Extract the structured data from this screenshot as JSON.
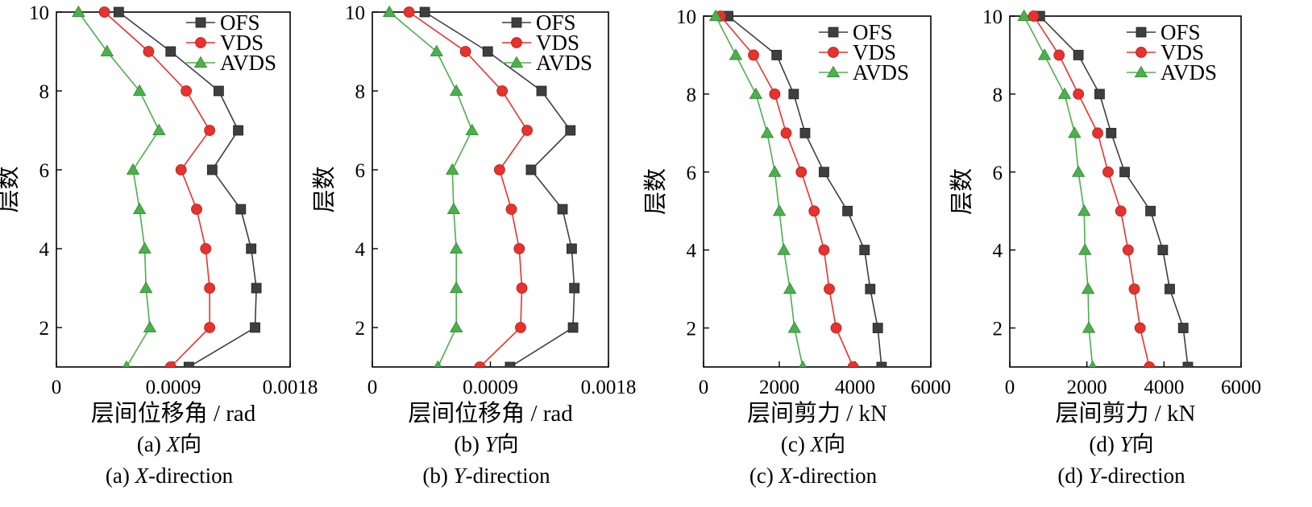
{
  "colors": {
    "OFS": "#3f3f3f",
    "VDS": "#e8322d",
    "AVDS": "#4cb04c",
    "axis": "#000000"
  },
  "markers": {
    "OFS": "square",
    "VDS": "circle",
    "AVDS": "triangle"
  },
  "chart_data": [
    {
      "type": "line",
      "orientation": "x-value-y-storey",
      "caption_cn_prefix": "(a) ",
      "caption_cn_var": "X",
      "caption_cn_suffix": "向",
      "caption_en_prefix": "(a) ",
      "caption_en_var": "X",
      "caption_en_suffix": "-direction",
      "xlabel": "层间位移角 / rad",
      "ylabel": "层数",
      "xlim": [
        0,
        0.0018
      ],
      "ylim": [
        1,
        10
      ],
      "xticks": [
        0,
        0.0009,
        0.0018
      ],
      "xtick_labels": [
        "0",
        "0.0009",
        "0.0018"
      ],
      "yticks": [
        2,
        4,
        6,
        8,
        10
      ],
      "ytick_labels": [
        "2",
        "4",
        "6",
        "8",
        "10"
      ],
      "legend_position": "top-right",
      "y": [
        1,
        2,
        3,
        4,
        5,
        6,
        7,
        8,
        9,
        10
      ],
      "series": [
        {
          "name": "OFS",
          "values": [
            0.00102,
            0.00153,
            0.00154,
            0.0015,
            0.00142,
            0.0012,
            0.0014,
            0.00125,
            0.00088,
            0.00048
          ]
        },
        {
          "name": "VDS",
          "values": [
            0.00088,
            0.00118,
            0.00118,
            0.00115,
            0.00108,
            0.00096,
            0.00118,
            0.001,
            0.00071,
            0.00037
          ]
        },
        {
          "name": "AVDS",
          "values": [
            0.00054,
            0.00072,
            0.00069,
            0.00068,
            0.00064,
            0.00059,
            0.00079,
            0.00064,
            0.00039,
            0.00017
          ]
        }
      ]
    },
    {
      "type": "line",
      "orientation": "x-value-y-storey",
      "caption_cn_prefix": "(b) ",
      "caption_cn_var": "Y",
      "caption_cn_suffix": "向",
      "caption_en_prefix": "(b) ",
      "caption_en_var": "Y",
      "caption_en_suffix": "-direction",
      "xlabel": "层间位移角 / rad",
      "ylabel": "层数",
      "xlim": [
        0,
        0.0018
      ],
      "ylim": [
        1,
        10
      ],
      "xticks": [
        0,
        0.0009,
        0.0018
      ],
      "xtick_labels": [
        "0",
        "0.0009",
        "0.0018"
      ],
      "yticks": [
        2,
        4,
        6,
        8,
        10
      ],
      "ytick_labels": [
        "2",
        "4",
        "6",
        "8",
        "10"
      ],
      "legend_position": "top-right",
      "y": [
        1,
        2,
        3,
        4,
        5,
        6,
        7,
        8,
        9,
        10
      ],
      "series": [
        {
          "name": "OFS",
          "values": [
            0.00105,
            0.00153,
            0.00154,
            0.00152,
            0.00145,
            0.00121,
            0.00151,
            0.00129,
            0.00088,
            0.0004
          ]
        },
        {
          "name": "VDS",
          "values": [
            0.00082,
            0.00113,
            0.00114,
            0.00112,
            0.00106,
            0.00097,
            0.00118,
            0.00099,
            0.00071,
            0.00028
          ]
        },
        {
          "name": "AVDS",
          "values": [
            0.0005,
            0.00064,
            0.00064,
            0.00064,
            0.00062,
            0.00061,
            0.00076,
            0.00064,
            0.00049,
            0.00013
          ]
        }
      ]
    },
    {
      "type": "line",
      "orientation": "x-value-y-storey",
      "caption_cn_prefix": "(c) ",
      "caption_cn_var": "X",
      "caption_cn_suffix": "向",
      "caption_en_prefix": "(c) ",
      "caption_en_var": "X",
      "caption_en_suffix": "-direction",
      "xlabel": "层间剪力 / kN",
      "ylabel": "层数",
      "xlim": [
        0,
        6000
      ],
      "ylim": [
        1,
        10
      ],
      "xticks": [
        0,
        2000,
        4000,
        6000
      ],
      "xtick_labels": [
        "0",
        "2000",
        "4000",
        "6000"
      ],
      "yticks": [
        2,
        4,
        6,
        8,
        10
      ],
      "ytick_labels": [
        "2",
        "4",
        "6",
        "8",
        "10"
      ],
      "legend_position": "top-right",
      "y": [
        1,
        2,
        3,
        4,
        5,
        6,
        7,
        8,
        9,
        10
      ],
      "series": [
        {
          "name": "OFS",
          "values": [
            4700,
            4600,
            4400,
            4250,
            3800,
            3180,
            2680,
            2380,
            1930,
            650
          ]
        },
        {
          "name": "VDS",
          "values": [
            3950,
            3500,
            3320,
            3180,
            2920,
            2580,
            2180,
            1880,
            1320,
            450
          ]
        },
        {
          "name": "AVDS",
          "values": [
            2620,
            2400,
            2280,
            2120,
            2000,
            1880,
            1680,
            1380,
            850,
            320
          ]
        }
      ]
    },
    {
      "type": "line",
      "orientation": "x-value-y-storey",
      "caption_cn_prefix": "(d) ",
      "caption_cn_var": "Y",
      "caption_cn_suffix": "向",
      "caption_en_prefix": "(d) ",
      "caption_en_var": "Y",
      "caption_en_suffix": "-direction",
      "xlabel": "层间剪力 / kN",
      "ylabel": "层数",
      "xlim": [
        0,
        6000
      ],
      "ylim": [
        1,
        10
      ],
      "xticks": [
        0,
        2000,
        4000,
        6000
      ],
      "xtick_labels": [
        "0",
        "2000",
        "4000",
        "6000"
      ],
      "yticks": [
        2,
        4,
        6,
        8,
        10
      ],
      "ytick_labels": [
        "2",
        "4",
        "6",
        "8",
        "10"
      ],
      "legend_position": "top-right",
      "y": [
        1,
        2,
        3,
        4,
        5,
        6,
        7,
        8,
        9,
        10
      ],
      "series": [
        {
          "name": "OFS",
          "values": [
            4620,
            4500,
            4150,
            3970,
            3650,
            2980,
            2630,
            2330,
            1780,
            780
          ]
        },
        {
          "name": "VDS",
          "values": [
            3620,
            3380,
            3230,
            3070,
            2880,
            2550,
            2280,
            1780,
            1280,
            620
          ]
        },
        {
          "name": "AVDS",
          "values": [
            2150,
            2050,
            2030,
            1950,
            1930,
            1780,
            1680,
            1420,
            900,
            370
          ]
        }
      ]
    }
  ]
}
